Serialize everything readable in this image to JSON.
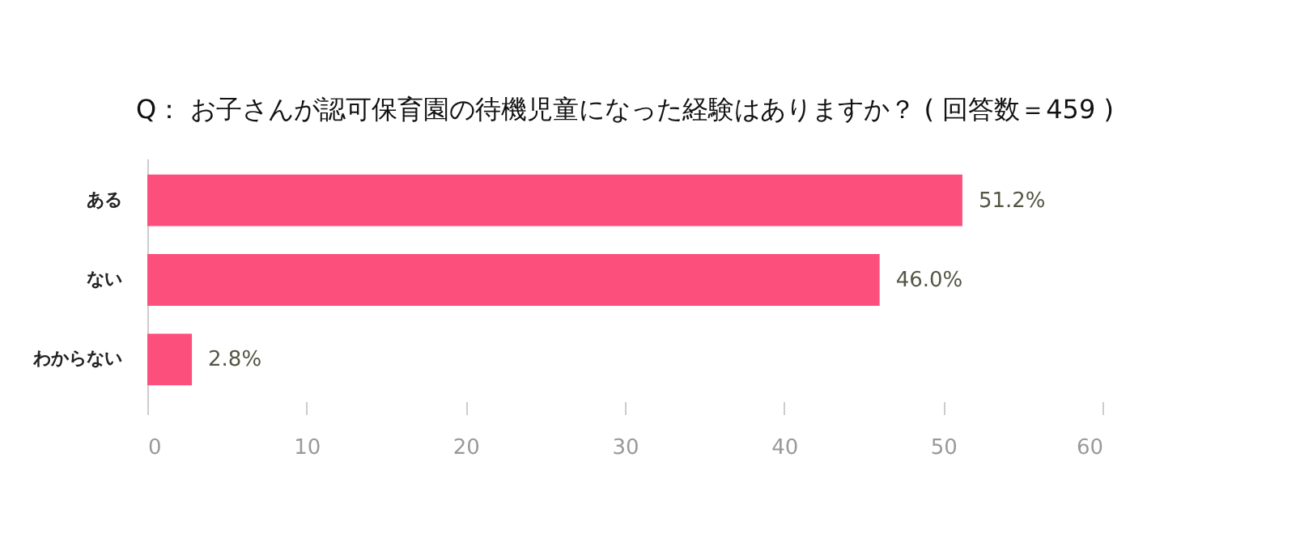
{
  "chart_data": {
    "type": "bar",
    "orientation": "horizontal",
    "title": "Q： お子さんが認可保育園の待機児童になった経験はありますか？ ( 回答数＝459 )",
    "categories": [
      "ある",
      "ない",
      "わからない"
    ],
    "values": [
      51.2,
      46.0,
      2.8
    ],
    "value_labels": [
      "51.2%",
      "46.0%",
      "2.8%"
    ],
    "color": "#fc4f7c",
    "xlim": [
      0,
      60
    ],
    "xticks": [
      0,
      10,
      20,
      30,
      40,
      50,
      60
    ],
    "grid": false
  }
}
